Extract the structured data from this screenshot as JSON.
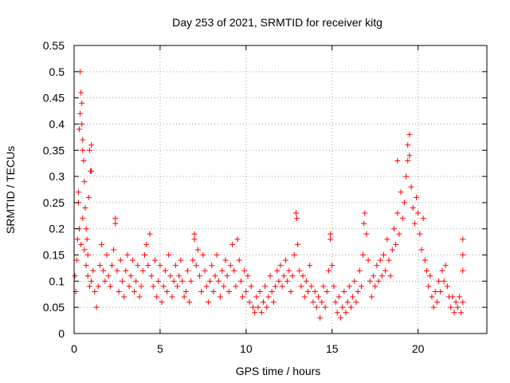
{
  "chart_data": {
    "type": "scatter",
    "title": "Day 253 of 2021, SRMTID for receiver kitg",
    "xlabel": "GPS time / hours",
    "ylabel": "SRMTID / TECUs",
    "xlim": [
      0,
      24
    ],
    "ylim": [
      0,
      0.55
    ],
    "xticks": [
      "0",
      "5",
      "10",
      "15",
      "20"
    ],
    "xtick_values": [
      0,
      5,
      10,
      15,
      20
    ],
    "yticks": [
      "0",
      "0.05",
      "0.1",
      "0.15",
      "0.2",
      "0.25",
      "0.3",
      "0.35",
      "0.4",
      "0.45",
      "0.5",
      "0.55"
    ],
    "ytick_values": [
      0,
      0.05,
      0.1,
      0.15,
      0.2,
      0.25,
      0.3,
      0.35,
      0.4,
      0.45,
      0.5,
      0.55
    ],
    "grid": true,
    "marker": "+",
    "color": "#ff0000",
    "series": [
      {
        "values": [
          [
            0.05,
            0.11
          ],
          [
            0.1,
            0.08
          ],
          [
            0.15,
            0.14
          ],
          [
            0.2,
            0.18
          ],
          [
            0.25,
            0.27
          ],
          [
            0.3,
            0.39
          ],
          [
            0.35,
            0.5
          ],
          [
            0.4,
            0.46
          ],
          [
            0.45,
            0.44
          ],
          [
            0.5,
            0.37
          ],
          [
            0.55,
            0.33
          ],
          [
            0.6,
            0.29
          ],
          [
            0.65,
            0.24
          ],
          [
            0.7,
            0.2
          ],
          [
            0.75,
            0.18
          ],
          [
            0.8,
            0.15
          ],
          [
            0.85,
            0.26
          ],
          [
            0.9,
            0.35
          ],
          [
            0.95,
            0.31
          ],
          [
            1.0,
            0.36
          ],
          [
            0.3,
            0.2
          ],
          [
            0.4,
            0.17
          ],
          [
            0.5,
            0.22
          ],
          [
            0.6,
            0.16
          ],
          [
            0.7,
            0.13
          ],
          [
            0.8,
            0.11
          ],
          [
            0.9,
            0.09
          ],
          [
            1.0,
            0.1
          ],
          [
            1.1,
            0.12
          ],
          [
            1.2,
            0.08
          ],
          [
            1.3,
            0.05
          ],
          [
            1.4,
            0.09
          ],
          [
            1.5,
            0.13
          ],
          [
            1.6,
            0.17
          ],
          [
            1.7,
            0.12
          ],
          [
            1.8,
            0.1
          ],
          [
            1.9,
            0.15
          ],
          [
            2.0,
            0.11
          ],
          [
            2.1,
            0.09
          ],
          [
            2.2,
            0.13
          ],
          [
            2.3,
            0.16
          ],
          [
            2.4,
            0.21
          ],
          [
            2.5,
            0.12
          ],
          [
            2.6,
            0.08
          ],
          [
            2.7,
            0.14
          ],
          [
            2.8,
            0.1
          ],
          [
            2.9,
            0.07
          ],
          [
            3.0,
            0.12
          ],
          [
            3.1,
            0.15
          ],
          [
            3.2,
            0.09
          ],
          [
            3.3,
            0.11
          ],
          [
            3.4,
            0.14
          ],
          [
            3.5,
            0.08
          ],
          [
            3.6,
            0.1
          ],
          [
            3.7,
            0.13
          ],
          [
            3.8,
            0.07
          ],
          [
            3.9,
            0.09
          ],
          [
            4.0,
            0.12
          ],
          [
            4.1,
            0.15
          ],
          [
            4.2,
            0.17
          ],
          [
            4.3,
            0.13
          ],
          [
            4.4,
            0.19
          ],
          [
            4.5,
            0.11
          ],
          [
            4.6,
            0.09
          ],
          [
            4.7,
            0.14
          ],
          [
            4.8,
            0.07
          ],
          [
            4.9,
            0.1
          ],
          [
            5.0,
            0.13
          ],
          [
            5.1,
            0.06
          ],
          [
            5.2,
            0.09
          ],
          [
            5.3,
            0.12
          ],
          [
            5.4,
            0.08
          ],
          [
            5.5,
            0.15
          ],
          [
            5.6,
            0.11
          ],
          [
            5.7,
            0.07
          ],
          [
            5.8,
            0.1
          ],
          [
            5.9,
            0.13
          ],
          [
            6.0,
            0.09
          ],
          [
            6.1,
            0.11
          ],
          [
            6.2,
            0.14
          ],
          [
            6.3,
            0.1
          ],
          [
            6.4,
            0.07
          ],
          [
            6.5,
            0.08
          ],
          [
            6.6,
            0.12
          ],
          [
            6.7,
            0.06
          ],
          [
            6.8,
            0.1
          ],
          [
            6.9,
            0.14
          ],
          [
            7.0,
            0.18
          ],
          [
            7.1,
            0.13
          ],
          [
            7.2,
            0.16
          ],
          [
            7.3,
            0.11
          ],
          [
            7.4,
            0.08
          ],
          [
            7.5,
            0.15
          ],
          [
            7.6,
            0.12
          ],
          [
            7.7,
            0.09
          ],
          [
            7.8,
            0.06
          ],
          [
            7.9,
            0.1
          ],
          [
            8.0,
            0.13
          ],
          [
            8.1,
            0.08
          ],
          [
            8.2,
            0.11
          ],
          [
            8.3,
            0.15
          ],
          [
            8.4,
            0.1
          ],
          [
            8.5,
            0.07
          ],
          [
            8.6,
            0.12
          ],
          [
            8.7,
            0.09
          ],
          [
            8.8,
            0.14
          ],
          [
            8.9,
            0.11
          ],
          [
            9.0,
            0.08
          ],
          [
            9.1,
            0.13
          ],
          [
            9.2,
            0.17
          ],
          [
            9.3,
            0.12
          ],
          [
            9.4,
            0.09
          ],
          [
            9.5,
            0.18
          ],
          [
            9.6,
            0.14
          ],
          [
            9.7,
            0.1
          ],
          [
            9.8,
            0.07
          ],
          [
            9.9,
            0.12
          ],
          [
            10.0,
            0.08
          ],
          [
            10.1,
            0.11
          ],
          [
            10.2,
            0.06
          ],
          [
            10.3,
            0.09
          ],
          [
            10.4,
            0.05
          ],
          [
            10.5,
            0.04
          ],
          [
            10.6,
            0.07
          ],
          [
            10.7,
            0.05
          ],
          [
            10.8,
            0.08
          ],
          [
            10.9,
            0.04
          ],
          [
            11.0,
            0.06
          ],
          [
            11.1,
            0.09
          ],
          [
            11.2,
            0.05
          ],
          [
            11.3,
            0.07
          ],
          [
            11.4,
            0.11
          ],
          [
            11.5,
            0.08
          ],
          [
            11.6,
            0.06
          ],
          [
            11.7,
            0.09
          ],
          [
            11.8,
            0.12
          ],
          [
            11.9,
            0.1
          ],
          [
            12.0,
            0.13
          ],
          [
            12.1,
            0.09
          ],
          [
            12.2,
            0.11
          ],
          [
            12.3,
            0.14
          ],
          [
            12.4,
            0.1
          ],
          [
            12.5,
            0.12
          ],
          [
            12.6,
            0.08
          ],
          [
            12.7,
            0.11
          ],
          [
            12.8,
            0.15
          ],
          [
            12.9,
            0.23
          ],
          [
            13.0,
            0.17
          ],
          [
            13.1,
            0.12
          ],
          [
            13.2,
            0.09
          ],
          [
            13.3,
            0.11
          ],
          [
            13.4,
            0.07
          ],
          [
            13.5,
            0.1
          ],
          [
            13.6,
            0.08
          ],
          [
            13.7,
            0.13
          ],
          [
            13.8,
            0.09
          ],
          [
            13.9,
            0.06
          ],
          [
            14.0,
            0.08
          ],
          [
            14.1,
            0.05
          ],
          [
            14.2,
            0.07
          ],
          [
            14.3,
            0.03
          ],
          [
            14.4,
            0.06
          ],
          [
            14.5,
            0.09
          ],
          [
            14.6,
            0.05
          ],
          [
            14.7,
            0.08
          ],
          [
            14.8,
            0.12
          ],
          [
            14.9,
            0.18
          ],
          [
            15.0,
            0.13
          ],
          [
            15.1,
            0.09
          ],
          [
            15.2,
            0.06
          ],
          [
            15.3,
            0.04
          ],
          [
            15.4,
            0.07
          ],
          [
            15.5,
            0.03
          ],
          [
            15.6,
            0.05
          ],
          [
            15.7,
            0.08
          ],
          [
            15.8,
            0.04
          ],
          [
            15.9,
            0.06
          ],
          [
            16.0,
            0.09
          ],
          [
            16.1,
            0.05
          ],
          [
            16.2,
            0.07
          ],
          [
            16.3,
            0.1
          ],
          [
            16.4,
            0.06
          ],
          [
            16.5,
            0.08
          ],
          [
            16.6,
            0.12
          ],
          [
            16.7,
            0.09
          ],
          [
            16.8,
            0.15
          ],
          [
            16.9,
            0.23
          ],
          [
            17.0,
            0.19
          ],
          [
            17.1,
            0.14
          ],
          [
            17.2,
            0.1
          ],
          [
            17.3,
            0.07
          ],
          [
            17.4,
            0.11
          ],
          [
            17.5,
            0.09
          ],
          [
            17.6,
            0.13
          ],
          [
            17.7,
            0.1
          ],
          [
            17.8,
            0.14
          ],
          [
            17.9,
            0.11
          ],
          [
            18.0,
            0.15
          ],
          [
            18.1,
            0.12
          ],
          [
            18.2,
            0.18
          ],
          [
            18.3,
            0.14
          ],
          [
            18.4,
            0.11
          ],
          [
            18.5,
            0.16
          ],
          [
            18.6,
            0.2
          ],
          [
            18.7,
            0.17
          ],
          [
            18.8,
            0.23
          ],
          [
            18.9,
            0.19
          ],
          [
            19.0,
            0.27
          ],
          [
            19.1,
            0.22
          ],
          [
            19.2,
            0.25
          ],
          [
            19.3,
            0.3
          ],
          [
            19.4,
            0.36
          ],
          [
            19.5,
            0.34
          ],
          [
            19.6,
            0.28
          ],
          [
            19.7,
            0.24
          ],
          [
            19.8,
            0.21
          ],
          [
            19.9,
            0.26
          ],
          [
            20.0,
            0.23
          ],
          [
            20.1,
            0.19
          ],
          [
            20.2,
            0.16
          ],
          [
            20.3,
            0.22
          ],
          [
            20.4,
            0.14
          ],
          [
            20.5,
            0.12
          ],
          [
            20.6,
            0.09
          ],
          [
            20.7,
            0.11
          ],
          [
            20.8,
            0.07
          ],
          [
            20.9,
            0.05
          ],
          [
            21.0,
            0.08
          ],
          [
            21.1,
            0.06
          ],
          [
            21.2,
            0.1
          ],
          [
            21.3,
            0.08
          ],
          [
            21.4,
            0.12
          ],
          [
            21.5,
            0.1
          ],
          [
            21.6,
            0.13
          ],
          [
            21.7,
            0.09
          ],
          [
            21.8,
            0.07
          ],
          [
            21.9,
            0.05
          ],
          [
            22.0,
            0.07
          ],
          [
            22.1,
            0.04
          ],
          [
            22.2,
            0.06
          ],
          [
            22.3,
            0.05
          ],
          [
            22.4,
            0.07
          ],
          [
            22.5,
            0.04
          ],
          [
            22.6,
            0.15
          ],
          [
            22.6,
            0.18
          ],
          [
            22.6,
            0.12
          ],
          [
            22.6,
            0.06
          ],
          [
            19.5,
            0.38
          ],
          [
            19.4,
            0.33
          ],
          [
            18.8,
            0.33
          ],
          [
            1.0,
            0.31
          ],
          [
            0.35,
            0.42
          ],
          [
            0.45,
            0.4
          ],
          [
            0.5,
            0.35
          ],
          [
            0.25,
            0.25
          ],
          [
            12.95,
            0.22
          ],
          [
            16.85,
            0.21
          ],
          [
            2.4,
            0.22
          ],
          [
            7.0,
            0.19
          ],
          [
            14.9,
            0.19
          ]
        ]
      }
    ]
  }
}
